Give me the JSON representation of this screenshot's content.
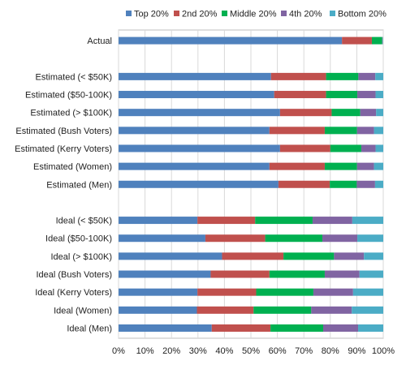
{
  "chart_data": {
    "type": "bar",
    "orientation": "horizontal",
    "stacked": true,
    "categories": [
      "Actual",
      "",
      "Estimated (< $50K)",
      "Estimated ($50-100K)",
      "Estimated (> $100K)",
      "Estimated (Bush Voters)",
      "Estimated (Kerry Voters)",
      "Estimated (Women)",
      "Estimated (Men)",
      "",
      "Ideal (< $50K)",
      "Ideal ($50-100K)",
      "Ideal (> $100K)",
      "Ideal (Bush Voters)",
      "Ideal (Kerry Voters)",
      "Ideal (Women)",
      "Ideal (Men)"
    ],
    "series": [
      {
        "name": "Top 20%",
        "color": "#4f81bd",
        "values": [
          84.4,
          0,
          57.6,
          58.8,
          61.0,
          57.0,
          61.0,
          57.0,
          60.4,
          0,
          29.8,
          32.8,
          39.1,
          34.8,
          29.8,
          29.6,
          35.2
        ]
      },
      {
        "name": "2nd 20%",
        "color": "#c0504d",
        "values": [
          11.3,
          0,
          20.8,
          19.6,
          19.5,
          20.9,
          19.0,
          20.9,
          19.4,
          0,
          21.8,
          22.6,
          23.2,
          22.2,
          22.2,
          21.4,
          22.2
        ]
      },
      {
        "name": "Middle 20%",
        "color": "#00b050",
        "values": [
          3.9,
          0,
          12.2,
          11.8,
          10.8,
          12.2,
          11.7,
          12.2,
          10.2,
          0,
          21.7,
          21.6,
          19.1,
          20.9,
          21.6,
          21.8,
          19.9
        ]
      },
      {
        "name": "4th 20%",
        "color": "#8064a2",
        "values": [
          0.2,
          0,
          6.4,
          6.9,
          6.0,
          6.4,
          5.4,
          6.4,
          6.9,
          0,
          15.0,
          13.2,
          11.3,
          13.1,
          15.0,
          15.3,
          13.2
        ]
      },
      {
        "name": "Bottom 20%",
        "color": "#4bacc6",
        "values": [
          0.1,
          0,
          3.0,
          2.9,
          2.7,
          3.5,
          2.9,
          3.5,
          3.1,
          0,
          11.7,
          9.8,
          7.3,
          9.0,
          11.4,
          11.9,
          9.5
        ]
      }
    ],
    "xlim": [
      0,
      100
    ],
    "xticks": [
      "0%",
      "10%",
      "20%",
      "30%",
      "40%",
      "50%",
      "60%",
      "70%",
      "80%",
      "90%",
      "100%"
    ],
    "title": "",
    "xlabel": "",
    "ylabel": "",
    "legend": "top",
    "grid": true
  }
}
